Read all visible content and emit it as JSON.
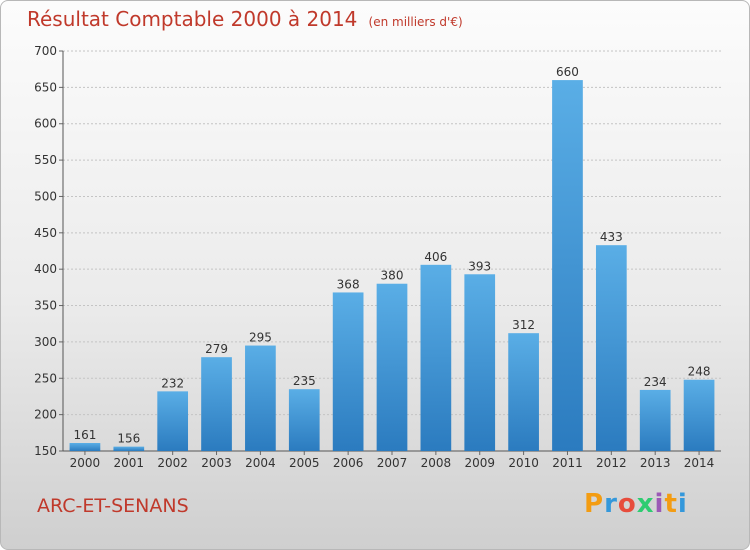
{
  "chart_data": {
    "type": "bar",
    "title": "Résultat Comptable 2000 à 2014",
    "unit": "(en milliers d'€)",
    "categories": [
      "2000",
      "2001",
      "2002",
      "2003",
      "2004",
      "2005",
      "2006",
      "2007",
      "2008",
      "2009",
      "2010",
      "2011",
      "2012",
      "2013",
      "2014"
    ],
    "values": [
      161,
      156,
      232,
      279,
      295,
      235,
      368,
      380,
      406,
      393,
      312,
      660,
      433,
      234,
      248
    ],
    "ylim": [
      150,
      700
    ],
    "yticks": [
      150,
      200,
      250,
      300,
      350,
      400,
      450,
      500,
      550,
      600,
      650,
      700
    ],
    "grid": true,
    "bar_color": "#4a9fdc"
  },
  "commune": "ARC-ET-SENANS",
  "logo": {
    "letters": [
      "P",
      "r",
      "o",
      "x",
      "i",
      "t",
      "i"
    ],
    "colors": [
      "#f39c12",
      "#3498db",
      "#e74c3c",
      "#2ecc71",
      "#9b59b6",
      "#f39c12",
      "#3498db"
    ]
  }
}
